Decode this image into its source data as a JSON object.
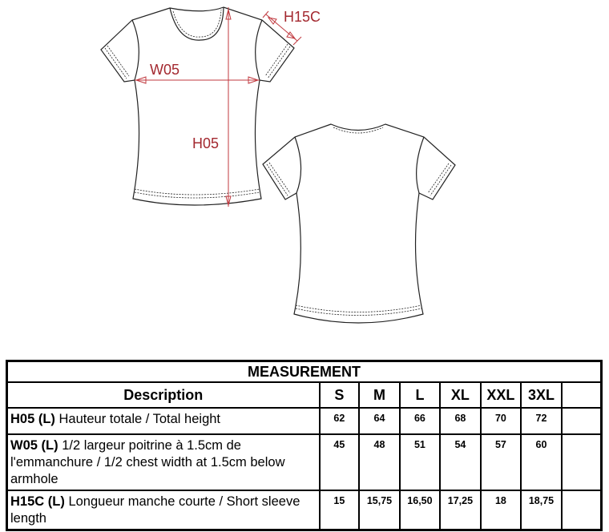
{
  "drawing": {
    "labels": {
      "h15c": "H15C",
      "w05": "W05",
      "h05": "H05"
    },
    "measure_color": "#a3282f"
  },
  "table": {
    "title": "MEASUREMENT",
    "headers": [
      "Description",
      "S",
      "M",
      "L",
      "XL",
      "XXL",
      "3XL",
      ""
    ],
    "rows": [
      {
        "code": "H05 (L)",
        "text": "Hauteur totale / Total height",
        "values": [
          "62",
          "64",
          "66",
          "68",
          "70",
          "72",
          ""
        ]
      },
      {
        "code": "W05 (L)",
        "text": "1/2 largeur poitrine à 1.5cm de l'emmanchure / 1/2 chest width at 1.5cm below armhole",
        "values": [
          "45",
          "48",
          "51",
          "54",
          "57",
          "60",
          ""
        ]
      },
      {
        "code": "H15C (L)",
        "text": "Longueur manche courte / Short sleeve length",
        "values": [
          "15",
          "15,75",
          "16,50",
          "17,25",
          "18",
          "18,75",
          ""
        ]
      }
    ]
  }
}
